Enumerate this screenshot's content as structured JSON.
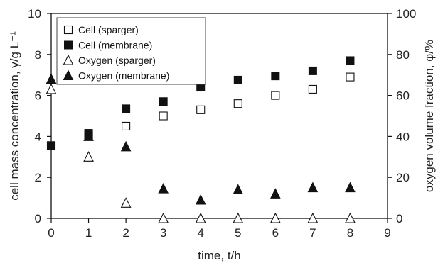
{
  "chart_data": {
    "type": "scatter",
    "xlabel": "time, t/h",
    "ylabel": "cell mass concentration, γ/g L⁻¹",
    "y2label": "oxygen volume fraction, φ/%",
    "xlim": [
      0,
      9
    ],
    "ylim": [
      0,
      10
    ],
    "y2lim": [
      0,
      100
    ],
    "x_ticks": [
      0,
      1,
      2,
      3,
      4,
      5,
      6,
      7,
      8,
      9
    ],
    "y_ticks": [
      0,
      2,
      4,
      6,
      8,
      10
    ],
    "y2_ticks": [
      0,
      20,
      40,
      60,
      80,
      100
    ],
    "grid": false,
    "legend_position": "top-left",
    "series": [
      {
        "name": "Cell (sparger)",
        "axis": "left",
        "marker": "open-square",
        "x": [
          0,
          1,
          2,
          3,
          4,
          5,
          6,
          7,
          8
        ],
        "y": [
          3.55,
          4.05,
          4.5,
          5.0,
          5.3,
          5.6,
          6.0,
          6.3,
          6.9
        ]
      },
      {
        "name": "Cell (membrane)",
        "axis": "left",
        "marker": "filled-square",
        "x": [
          0,
          1,
          2,
          3,
          4,
          5,
          6,
          7,
          8
        ],
        "y": [
          3.55,
          4.15,
          5.35,
          5.7,
          6.4,
          6.75,
          6.95,
          7.2,
          7.7
        ]
      },
      {
        "name": "Oxygen (sparger)",
        "axis": "right",
        "marker": "open-triangle",
        "x": [
          0,
          1,
          2,
          3,
          4,
          5,
          6,
          7,
          8
        ],
        "y": [
          63,
          30,
          7.5,
          0,
          0,
          0,
          0,
          0,
          0
        ]
      },
      {
        "name": "Oxygen (membrane)",
        "axis": "right",
        "marker": "filled-triangle",
        "x": [
          0,
          1,
          2,
          3,
          4,
          5,
          6,
          7,
          8
        ],
        "y": [
          68,
          40,
          35,
          14.5,
          9,
          14,
          12,
          15,
          15
        ]
      }
    ]
  }
}
